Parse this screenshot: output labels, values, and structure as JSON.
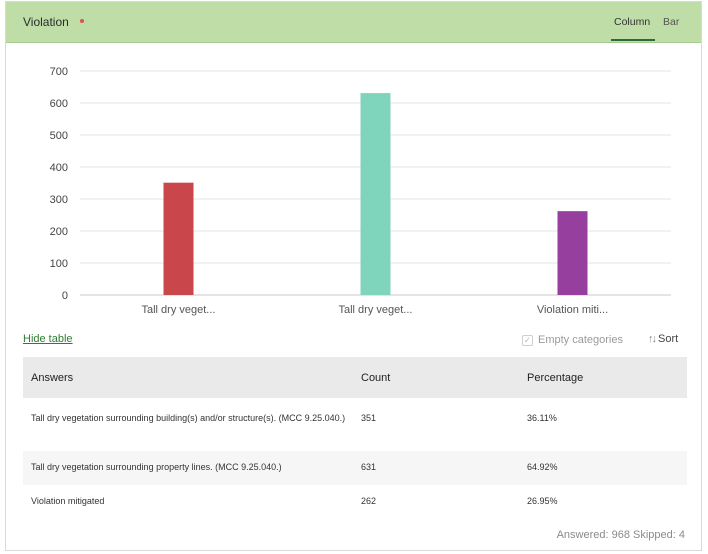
{
  "header": {
    "title": "Violation",
    "tabs": [
      {
        "label": "Column",
        "active": true
      },
      {
        "label": "Bar",
        "active": false
      }
    ],
    "background_color": "#bfdea7",
    "required_dot_color": "#d9534f"
  },
  "chart_data": {
    "type": "bar",
    "categories": [
      "Tall dry veget...",
      "Tall dry veget...",
      "Violation miti..."
    ],
    "values": [
      351,
      631,
      262
    ],
    "colors": [
      "#c9464a",
      "#7fd5bb",
      "#963f9e"
    ],
    "ylim": [
      0,
      700
    ],
    "yticks": [
      0,
      100,
      200,
      300,
      400,
      500,
      600,
      700
    ],
    "grid": true
  },
  "controls": {
    "hide_table": "Hide table",
    "empty_categories": "Empty categories",
    "empty_categories_checked": true,
    "sort": "Sort"
  },
  "table": {
    "headers": [
      "Answers",
      "Count",
      "Percentage"
    ],
    "rows": [
      {
        "answer": "Tall dry vegetation surrounding building(s) and/or structure(s). (MCC 9.25.040.)",
        "count": "351",
        "percentage": "36.11%"
      },
      {
        "answer": "Tall dry vegetation surrounding property lines. (MCC 9.25.040.)",
        "count": "631",
        "percentage": "64.92%"
      },
      {
        "answer": "Violation mitigated",
        "count": "262",
        "percentage": "26.95%"
      }
    ]
  },
  "footer": {
    "summary": "Answered: 968  Skipped: 4"
  }
}
